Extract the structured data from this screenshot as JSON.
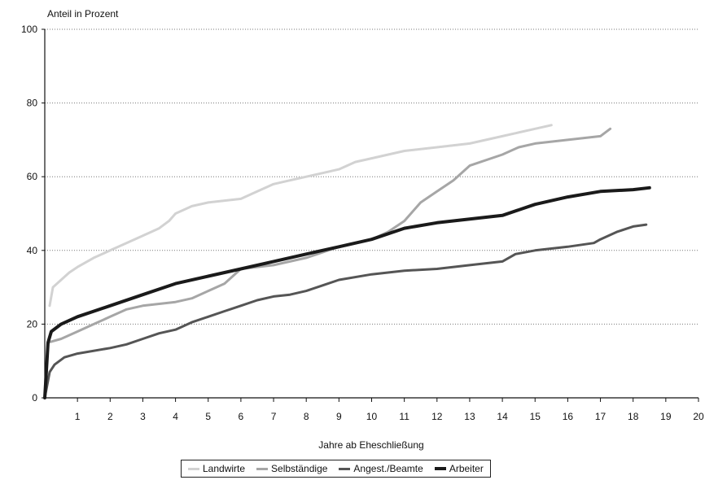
{
  "chart_data": {
    "type": "line",
    "title": "",
    "ylabel": "Anteil in Prozent",
    "xlabel": "Jahre ab Eheschließung",
    "xlim": [
      0,
      20
    ],
    "ylim": [
      0,
      100
    ],
    "x_ticks": [
      1,
      2,
      3,
      4,
      5,
      6,
      7,
      8,
      9,
      10,
      11,
      12,
      13,
      14,
      15,
      16,
      17,
      18,
      19,
      20
    ],
    "y_ticks": [
      0,
      20,
      40,
      60,
      80,
      100
    ],
    "grid": "horizontal dotted",
    "legend_position": "bottom-center",
    "series": [
      {
        "name": "Landwirte",
        "color": "#d2d2d2",
        "stroke": 3,
        "points": [
          [
            0.15,
            25
          ],
          [
            0.25,
            30
          ],
          [
            0.5,
            32
          ],
          [
            0.75,
            34
          ],
          [
            1,
            35.5
          ],
          [
            1.5,
            38
          ],
          [
            2,
            40
          ],
          [
            2.5,
            42
          ],
          [
            3,
            44
          ],
          [
            3.5,
            46
          ],
          [
            3.8,
            48
          ],
          [
            4,
            50
          ],
          [
            4.5,
            52
          ],
          [
            5,
            53
          ],
          [
            6,
            54
          ],
          [
            6.5,
            56
          ],
          [
            7,
            58
          ],
          [
            7.5,
            59
          ],
          [
            8,
            60
          ],
          [
            8.5,
            61
          ],
          [
            9,
            62
          ],
          [
            9.5,
            64
          ],
          [
            10,
            65
          ],
          [
            11,
            67
          ],
          [
            12,
            68
          ],
          [
            13,
            69
          ],
          [
            14,
            71
          ],
          [
            15,
            73
          ],
          [
            15.5,
            74
          ]
        ]
      },
      {
        "name": "Selbständige",
        "color": "#a6a6a6",
        "stroke": 3,
        "points": [
          [
            0.1,
            15
          ],
          [
            0.5,
            16
          ],
          [
            1,
            18
          ],
          [
            1.5,
            20
          ],
          [
            2,
            22
          ],
          [
            2.5,
            24
          ],
          [
            3,
            25
          ],
          [
            4,
            26
          ],
          [
            4.5,
            27
          ],
          [
            5,
            29
          ],
          [
            5.5,
            31
          ],
          [
            6,
            35
          ],
          [
            7,
            36
          ],
          [
            8,
            38
          ],
          [
            9,
            41
          ],
          [
            10,
            43
          ],
          [
            10.5,
            45
          ],
          [
            11,
            48
          ],
          [
            11.5,
            53
          ],
          [
            12,
            56
          ],
          [
            12.5,
            59
          ],
          [
            13,
            63
          ],
          [
            14,
            66
          ],
          [
            14.5,
            68
          ],
          [
            15,
            69
          ],
          [
            16,
            70
          ],
          [
            17,
            71
          ],
          [
            17.3,
            73
          ]
        ]
      },
      {
        "name": "Angest./Beamte",
        "color": "#555555",
        "stroke": 3,
        "points": [
          [
            0,
            0
          ],
          [
            0.15,
            7
          ],
          [
            0.3,
            9
          ],
          [
            0.6,
            11
          ],
          [
            1,
            12
          ],
          [
            2,
            13.5
          ],
          [
            2.5,
            14.5
          ],
          [
            3,
            16
          ],
          [
            3.5,
            17.5
          ],
          [
            4,
            18.5
          ],
          [
            4.5,
            20.5
          ],
          [
            5,
            22
          ],
          [
            5.5,
            23.5
          ],
          [
            6,
            25
          ],
          [
            6.5,
            26.5
          ],
          [
            7,
            27.5
          ],
          [
            7.5,
            28
          ],
          [
            8,
            29
          ],
          [
            8.5,
            30.5
          ],
          [
            9,
            32
          ],
          [
            10,
            33.5
          ],
          [
            11,
            34.5
          ],
          [
            12,
            35
          ],
          [
            13,
            36
          ],
          [
            14,
            37
          ],
          [
            14.4,
            39
          ],
          [
            15,
            40
          ],
          [
            16,
            41
          ],
          [
            16.8,
            42
          ],
          [
            17,
            43
          ],
          [
            17.5,
            45
          ],
          [
            18,
            46.5
          ],
          [
            18.4,
            47
          ]
        ]
      },
      {
        "name": "Arbeiter",
        "color": "#1a1a1a",
        "stroke": 4,
        "points": [
          [
            0,
            0
          ],
          [
            0.1,
            15
          ],
          [
            0.2,
            18
          ],
          [
            0.5,
            20
          ],
          [
            1,
            22
          ],
          [
            2,
            25
          ],
          [
            3,
            28
          ],
          [
            4,
            31
          ],
          [
            5,
            33
          ],
          [
            6,
            35
          ],
          [
            7,
            37
          ],
          [
            8,
            39
          ],
          [
            9,
            41
          ],
          [
            10,
            43
          ],
          [
            11,
            46
          ],
          [
            12,
            47.5
          ],
          [
            13,
            48.5
          ],
          [
            14,
            49.5
          ],
          [
            14.5,
            51
          ],
          [
            15,
            52.5
          ],
          [
            16,
            54.5
          ],
          [
            17,
            56
          ],
          [
            18,
            56.5
          ],
          [
            18.5,
            57
          ]
        ]
      }
    ]
  }
}
